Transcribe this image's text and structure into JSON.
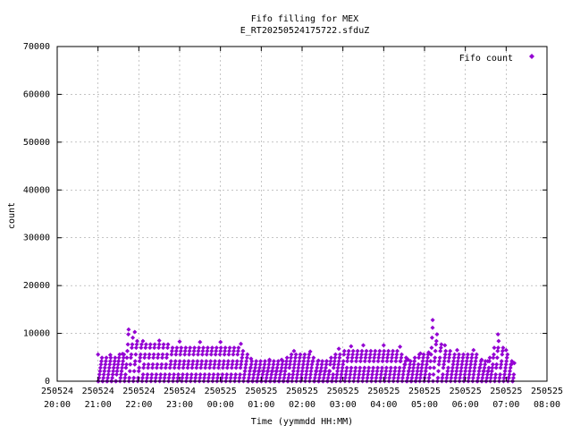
{
  "chart_data": {
    "type": "scatter",
    "title": "Fifo filling for MEX",
    "subtitle": "E_RT20250524175722.sfduZ",
    "xlabel": "Time (yymmdd HH:MM)",
    "ylabel": "count",
    "legend": {
      "label": "Fifo count",
      "position": "top-right"
    },
    "marker_color": "#9400D3",
    "grid": true,
    "xlim_hours": [
      20,
      32
    ],
    "ylim": [
      0,
      70000
    ],
    "x_ticks": [
      {
        "date": "250524",
        "time": "20:00"
      },
      {
        "date": "250524",
        "time": "21:00"
      },
      {
        "date": "250524",
        "time": "22:00"
      },
      {
        "date": "250524",
        "time": "23:00"
      },
      {
        "date": "250525",
        "time": "00:00"
      },
      {
        "date": "250525",
        "time": "01:00"
      },
      {
        "date": "250525",
        "time": "02:00"
      },
      {
        "date": "250525",
        "time": "03:00"
      },
      {
        "date": "250525",
        "time": "04:00"
      },
      {
        "date": "250525",
        "time": "05:00"
      },
      {
        "date": "250525",
        "time": "06:00"
      },
      {
        "date": "250525",
        "time": "07:00"
      },
      {
        "date": "250525",
        "time": "08:00"
      }
    ],
    "y_ticks": [
      "0",
      "10000",
      "20000",
      "30000",
      "40000",
      "50000",
      "60000",
      "70000"
    ],
    "series": [
      {
        "name": "Fifo count",
        "envelope": {
          "x_hours": [
            21.0,
            21.3,
            21.6,
            21.75,
            21.9,
            22.1,
            22.5,
            23.0,
            23.5,
            24.0,
            24.5,
            24.75,
            25.2,
            25.5,
            25.8,
            26.2,
            26.4,
            26.6,
            26.9,
            27.2,
            27.5,
            28.0,
            28.4,
            28.6,
            28.9,
            29.1,
            29.2,
            29.5,
            29.8,
            30.2,
            30.4,
            30.55,
            30.8,
            31.0,
            31.2
          ],
          "max_count": [
            5600,
            5500,
            5700,
            10800,
            10300,
            8400,
            8500,
            8300,
            8200,
            8200,
            7800,
            4700,
            4500,
            4500,
            6300,
            6200,
            4300,
            4200,
            6800,
            7300,
            7500,
            7500,
            7200,
            4500,
            5800,
            6000,
            12800,
            7500,
            6500,
            6500,
            4500,
            4200,
            9800,
            6500,
            3800
          ]
        },
        "band_spacing": 700,
        "x_range_hours": [
          21.0,
          31.2
        ]
      }
    ]
  }
}
